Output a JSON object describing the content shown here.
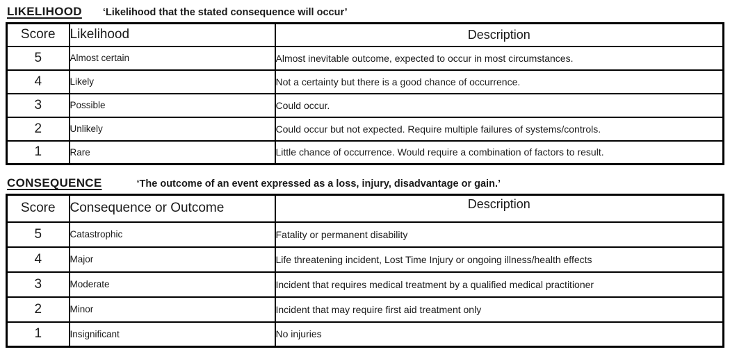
{
  "likelihood": {
    "title": "LIKELIHOOD",
    "subtitle": "‘Likelihood that the stated consequence will occur’",
    "columns": {
      "score": "Score",
      "name": "Likelihood",
      "description": "Description"
    },
    "rows": [
      {
        "score": "5",
        "name": "Almost certain",
        "description": "Almost inevitable outcome, expected to occur in most circumstances."
      },
      {
        "score": "4",
        "name": "Likely",
        "description": "Not a certainty but there is a good chance of occurrence."
      },
      {
        "score": "3",
        "name": "Possible",
        "description": "Could occur."
      },
      {
        "score": "2",
        "name": "Unlikely",
        "description": "Could occur but not expected. Require multiple failures of systems/controls."
      },
      {
        "score": "1",
        "name": "Rare",
        "description": "Little chance of occurrence. Would require a combination of factors to result."
      }
    ]
  },
  "consequence": {
    "title": "CONSEQUENCE",
    "subtitle": "‘The outcome of an event expressed as a loss, injury, disadvantage or gain.’",
    "columns": {
      "score": "Score",
      "name": "Consequence or Outcome",
      "description": "Description"
    },
    "rows": [
      {
        "score": "5",
        "name": "Catastrophic",
        "description": "Fatality or permanent disability"
      },
      {
        "score": "4",
        "name": "Major",
        "description": "Life threatening incident, Lost Time Injury or ongoing illness/health effects"
      },
      {
        "score": "3",
        "name": "Moderate",
        "description": "Incident that requires medical treatment by a qualified medical practitioner"
      },
      {
        "score": "2",
        "name": "Minor",
        "description": "Incident that may require first aid treatment only"
      },
      {
        "score": "1",
        "name": "Insignificant",
        "description": "No injuries"
      }
    ]
  },
  "colors": {
    "text": "#1a1a1a",
    "border": "#000000",
    "background": "#ffffff"
  }
}
